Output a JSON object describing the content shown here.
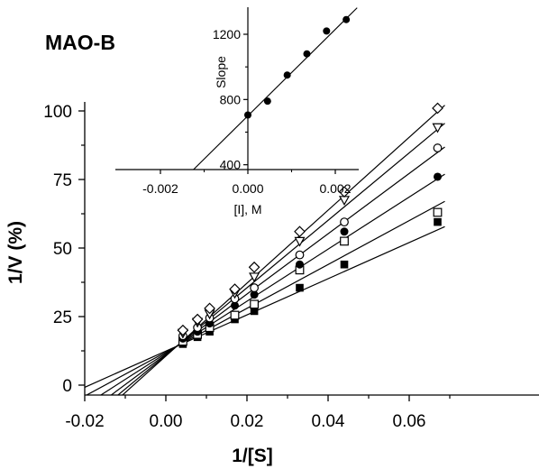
{
  "chart_data": [
    {
      "type": "scatter",
      "title": "MAO-B",
      "xlabel": "1/[S]",
      "ylabel": "1/V (%)",
      "xlim": [
        -0.02,
        0.072
      ],
      "ylim": [
        -3,
        105
      ],
      "x_ticks": [
        -0.02,
        0.0,
        0.02,
        0.04,
        0.06
      ],
      "x_tick_labels": [
        "-0.02",
        "0.00",
        "0.02",
        "0.04",
        "0.06"
      ],
      "y_ticks": [
        0,
        25,
        50,
        75,
        100
      ],
      "y_tick_labels": [
        "0",
        "25",
        "50",
        "75",
        "100"
      ],
      "x": [
        0.0042,
        0.0078,
        0.0108,
        0.017,
        0.0218,
        0.033,
        0.044,
        0.067
      ],
      "series": [
        {
          "marker": "filled-square",
          "y": [
            15,
            17.5,
            19.5,
            24,
            27,
            35.5,
            44,
            59.5
          ],
          "fit": {
            "slope": 660,
            "intercept": 12.4
          }
        },
        {
          "marker": "open-square",
          "y": [
            16,
            18.5,
            21,
            25.5,
            29.5,
            42,
            52.5,
            63
          ],
          "fit": {
            "slope": 800,
            "intercept": 12.0
          }
        },
        {
          "marker": "filled-circle",
          "y": [
            17,
            19.5,
            22.5,
            29,
            33,
            44,
            56,
            76
          ],
          "fit": {
            "slope": 950,
            "intercept": 11.6
          }
        },
        {
          "marker": "open-circle",
          "y": [
            18,
            21,
            24.5,
            31.5,
            35.5,
            47.5,
            59.5,
            86.5
          ],
          "fit": {
            "slope": 1100,
            "intercept": 11.2
          }
        },
        {
          "marker": "open-triangle-down",
          "y": [
            19,
            23,
            26,
            33.5,
            39.5,
            52.5,
            67.5,
            94
          ],
          "fit": {
            "slope": 1230,
            "intercept": 10.9
          }
        },
        {
          "marker": "open-diamond",
          "y": [
            20,
            24,
            28,
            35,
            43,
            56,
            70.5,
            101
          ],
          "fit": {
            "slope": 1330,
            "intercept": 10.6
          }
        }
      ]
    },
    {
      "type": "scatter",
      "xlabel": "[I],    M",
      "ylabel": "Slope",
      "xlim": [
        -0.003,
        0.0025
      ],
      "ylim": [
        0,
        1400
      ],
      "x_ticks": [
        -0.002,
        0.0,
        0.002
      ],
      "x_tick_labels": [
        "-0.002",
        "0.000",
        "0.002"
      ],
      "y_ticks": [
        400,
        800,
        1200
      ],
      "y_tick_labels": [
        "400",
        "800",
        "1200"
      ],
      "x": [
        0.0,
        0.00045,
        0.0009,
        0.00135,
        0.0018,
        0.00225
      ],
      "y": [
        705,
        790,
        950,
        1080,
        1220,
        1290
      ],
      "fit": {
        "slope": 265000,
        "intercept": 700
      }
    }
  ]
}
